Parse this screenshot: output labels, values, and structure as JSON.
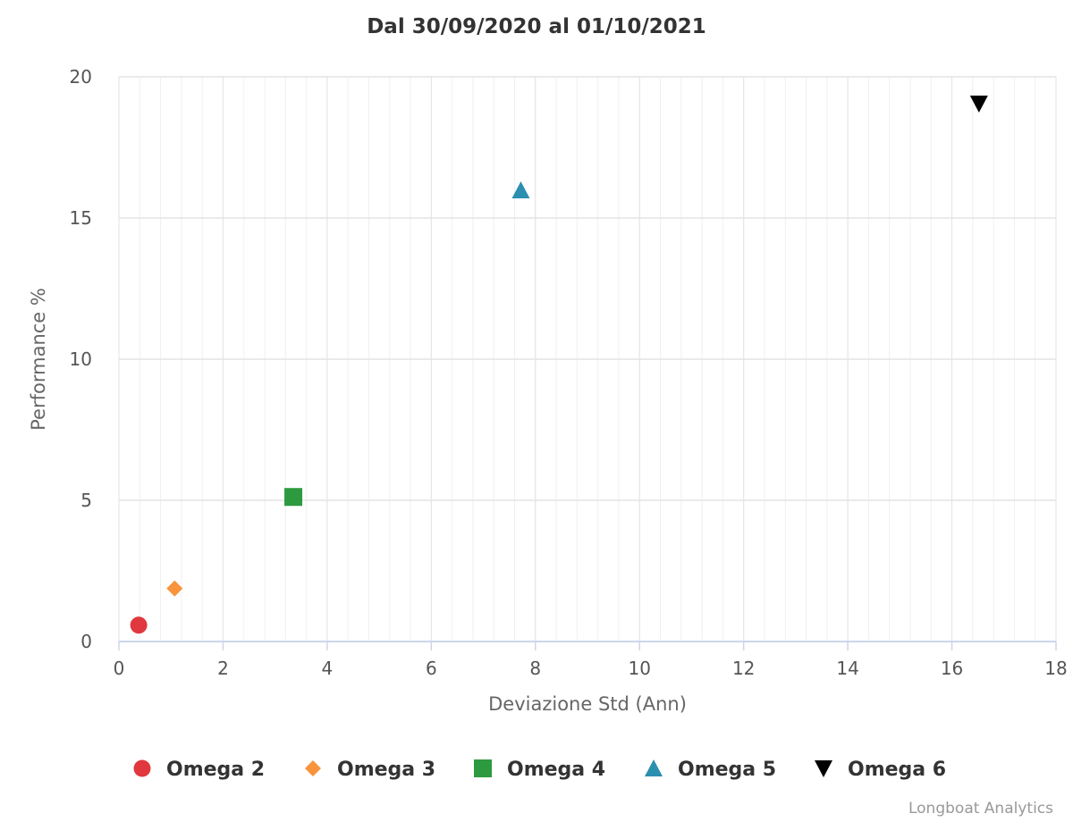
{
  "chart_data": {
    "type": "scatter",
    "title": "Dal 30/09/2020 al 01/10/2021",
    "xlabel": "Deviazione Std (Ann)",
    "ylabel": "Performance %",
    "xlim": [
      0,
      18
    ],
    "ylim": [
      0,
      20
    ],
    "x_ticks": [
      0,
      2,
      4,
      6,
      8,
      10,
      12,
      14,
      16,
      18
    ],
    "y_ticks": [
      0,
      5,
      10,
      15,
      20
    ],
    "x_minor_step": 0.4,
    "grid": true,
    "legend_position": "bottom",
    "series": [
      {
        "name": "Omega 2",
        "marker": "circle",
        "color": "#e0383e",
        "points": [
          {
            "x": 0.38,
            "y": 0.58
          }
        ]
      },
      {
        "name": "Omega 3",
        "marker": "diamond",
        "color": "#f7943c",
        "points": [
          {
            "x": 1.07,
            "y": 1.88
          }
        ]
      },
      {
        "name": "Omega 4",
        "marker": "square",
        "color": "#2e9a3f",
        "points": [
          {
            "x": 3.35,
            "y": 5.12
          }
        ]
      },
      {
        "name": "Omega 5",
        "marker": "triangle",
        "color": "#2b8faf",
        "points": [
          {
            "x": 7.72,
            "y": 15.98
          }
        ]
      },
      {
        "name": "Omega 6",
        "marker": "triangle-down",
        "color": "#000000",
        "points": [
          {
            "x": 16.52,
            "y": 19.05
          }
        ]
      }
    ]
  },
  "credits": "Longboat Analytics"
}
